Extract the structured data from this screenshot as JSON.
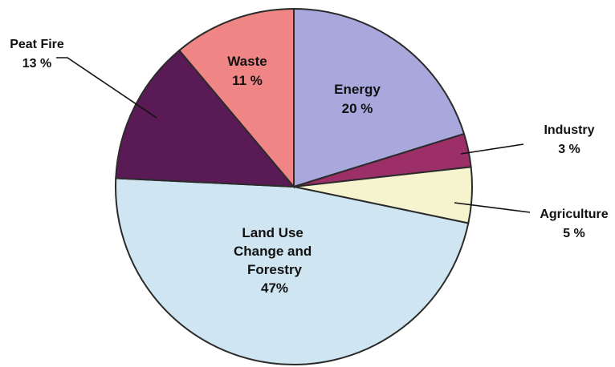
{
  "chart_data": {
    "type": "pie",
    "title": "",
    "unit": "%",
    "slices": [
      {
        "name": "Energy",
        "value": 20,
        "label": "20 %",
        "color": "#a8a8dc"
      },
      {
        "name": "Industry",
        "value": 3,
        "label": "3 %",
        "color": "#9c2f68"
      },
      {
        "name": "Agriculture",
        "value": 5,
        "label": "5 %",
        "color": "#f6f3cf"
      },
      {
        "name": "Land Use Change and Forestry",
        "value": 47,
        "label": "47%",
        "color": "#cfe5f2"
      },
      {
        "name": "Peat Fire",
        "value": 13,
        "label": "13 %",
        "color": "#5a1a55"
      },
      {
        "name": "Waste",
        "value": 11,
        "label": "11 %",
        "color": "#f08585"
      }
    ],
    "legend": "none"
  }
}
